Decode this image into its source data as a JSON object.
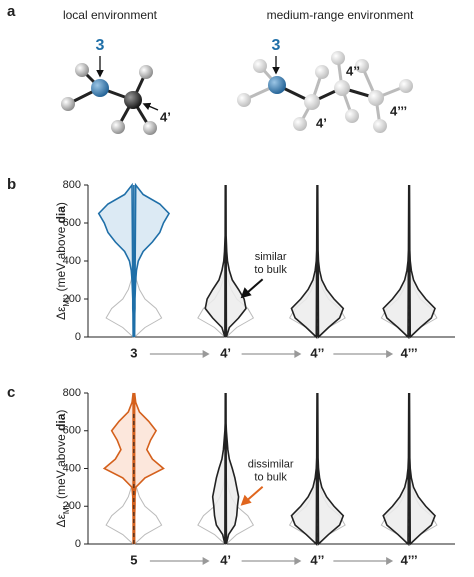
{
  "panel_a": {
    "label": "a",
    "titles": [
      "local environment",
      "medium-range environment"
    ],
    "left_labels": [
      "3",
      "4’"
    ],
    "right_labels": [
      "3",
      "4’",
      "4’’",
      "4’’’"
    ]
  },
  "chart_data": [
    {
      "type": "violin",
      "label": "b",
      "y_label": [
        "Δε",
        "ML",
        "(meV above ",
        "dia",
        ")"
      ],
      "categories": [
        "3",
        "4’",
        "4’’",
        "4’’’"
      ],
      "ylim": [
        0,
        800
      ],
      "yticks": [
        0,
        200,
        400,
        600,
        800
      ],
      "y_grid": [
        0,
        50,
        100,
        150,
        200,
        250,
        300,
        350,
        400,
        450,
        500,
        550,
        600,
        650,
        700,
        750,
        800
      ],
      "reference": {
        "color": "#bbbbbb",
        "density": [
          0.02,
          0.3,
          0.75,
          0.6,
          0.3,
          0.15,
          0.07,
          0.03,
          0.01,
          0,
          0,
          0,
          0,
          0,
          0,
          0,
          0
        ]
      },
      "series": [
        {
          "color": "#1f6fa8",
          "fill": "#d6e6f2",
          "density": [
            0.02,
            0.02,
            0.02,
            0.03,
            0.03,
            0.04,
            0.05,
            0.07,
            0.12,
            0.25,
            0.5,
            0.7,
            0.8,
            0.95,
            0.7,
            0.25,
            0.05
          ]
        },
        {
          "color": "#222222",
          "fill": "#ececec",
          "density": [
            0.02,
            0.1,
            0.35,
            0.55,
            0.5,
            0.35,
            0.18,
            0.1,
            0.05,
            0.03,
            0.02,
            0.01,
            0.01,
            0.01,
            0.01,
            0.01,
            0.01
          ]
        },
        {
          "color": "#222222",
          "fill": "#ececec",
          "density": [
            0.03,
            0.3,
            0.6,
            0.7,
            0.45,
            0.25,
            0.12,
            0.06,
            0.03,
            0.02,
            0.01,
            0.01,
            0.01,
            0.01,
            0.01,
            0.01,
            0.01
          ]
        },
        {
          "color": "#222222",
          "fill": "#ececec",
          "density": [
            0.03,
            0.3,
            0.6,
            0.7,
            0.45,
            0.25,
            0.12,
            0.06,
            0.03,
            0.02,
            0.01,
            0.01,
            0.01,
            0.01,
            0.01,
            0.01,
            0.01
          ]
        }
      ],
      "annotation": {
        "text": [
          "similar",
          "to bulk"
        ],
        "color": "#111111"
      }
    },
    {
      "type": "violin",
      "label": "c",
      "y_label": [
        "Δε",
        "ML",
        "(meV above ",
        "dia",
        ")"
      ],
      "categories": [
        "5",
        "4’",
        "4’’",
        "4’’’"
      ],
      "ylim": [
        0,
        800
      ],
      "yticks": [
        0,
        200,
        400,
        600,
        800
      ],
      "y_grid": [
        0,
        50,
        100,
        150,
        200,
        250,
        300,
        350,
        400,
        450,
        500,
        550,
        600,
        650,
        700,
        750,
        800
      ],
      "reference": {
        "color": "#bbbbbb",
        "density": [
          0.02,
          0.3,
          0.75,
          0.6,
          0.3,
          0.15,
          0.07,
          0.03,
          0.01,
          0,
          0,
          0,
          0,
          0,
          0,
          0,
          0
        ]
      },
      "series": [
        {
          "color": "#d4601c",
          "fill": "#fbe3d6",
          "density": [
            0.02,
            0.02,
            0.02,
            0.02,
            0.03,
            0.03,
            0.05,
            0.3,
            0.8,
            0.5,
            0.35,
            0.45,
            0.6,
            0.4,
            0.15,
            0.05,
            0.02
          ]
        },
        {
          "color": "#222222",
          "fill": "#ececec",
          "density": [
            0.02,
            0.08,
            0.25,
            0.3,
            0.32,
            0.35,
            0.3,
            0.25,
            0.18,
            0.1,
            0.06,
            0.04,
            0.02,
            0.01,
            0.01,
            0.01,
            0.01
          ]
        },
        {
          "color": "#222222",
          "fill": "#ececec",
          "density": [
            0.03,
            0.3,
            0.6,
            0.7,
            0.45,
            0.25,
            0.12,
            0.06,
            0.03,
            0.02,
            0.01,
            0.01,
            0.01,
            0.01,
            0.01,
            0.01,
            0.01
          ]
        },
        {
          "color": "#222222",
          "fill": "#ececec",
          "density": [
            0.03,
            0.3,
            0.6,
            0.7,
            0.45,
            0.25,
            0.12,
            0.06,
            0.03,
            0.02,
            0.01,
            0.01,
            0.01,
            0.01,
            0.01,
            0.01,
            0.01
          ]
        }
      ],
      "annotation": {
        "text": [
          "dissimilar",
          "to bulk"
        ],
        "color": "#e0661e"
      }
    }
  ]
}
